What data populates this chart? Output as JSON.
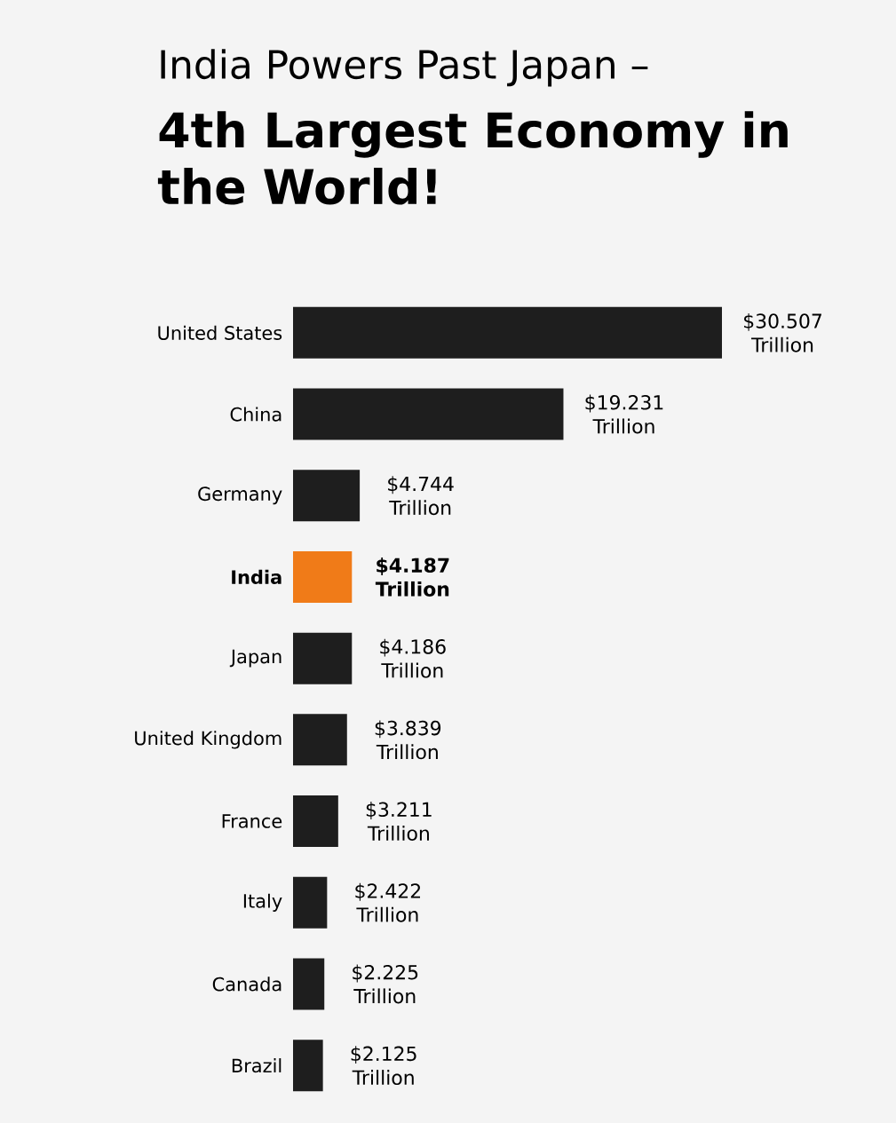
{
  "chart_data": {
    "type": "bar",
    "orientation": "horizontal",
    "title": "India Powers Past Japan –",
    "subtitle": "4th Largest Economy in the World!",
    "categories": [
      "United States",
      "China",
      "Germany",
      "**India**",
      "Japan",
      "United Kingdom",
      "France",
      "Italy",
      "Canada",
      "Brazil"
    ],
    "values": [
      30.507,
      19.231,
      4.744,
      4.187,
      4.186,
      3.839,
      3.211,
      2.422,
      2.225,
      2.125
    ],
    "colors": [
      "#1e1e1e",
      "#1e1e1e",
      "#1e1e1e",
      "#f07b18",
      "#1e1e1e",
      "#1e1e1e",
      "#1e1e1e",
      "#1e1e1e",
      "#1e1e1e",
      "#1e1e1e"
    ],
    "value_labels": [
      "$30.507 Trillion",
      "$19.231 Trillion",
      "$4.744 Trillion",
      "**$4.187 Trillion**",
      "$4.186 Trillion",
      "$3.839 Trillion",
      "$3.211 Trillion",
      "$2.422 Trillion",
      "$2.225 Trillion",
      "$2.125 Trillion"
    ],
    "xlim": [
      0,
      30.507
    ],
    "tick_labels": "y",
    "grid": false
  }
}
